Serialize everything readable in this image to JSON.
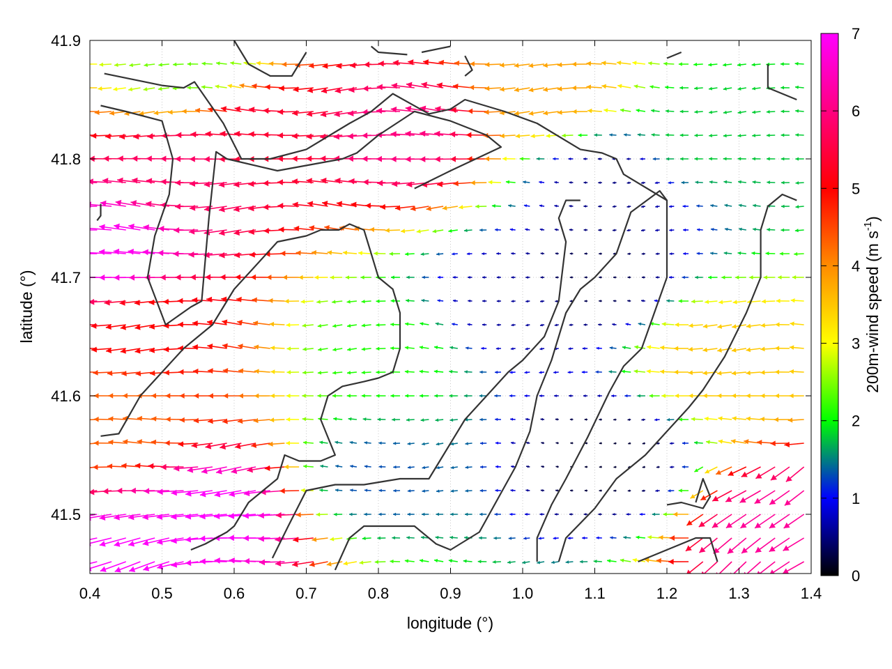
{
  "chart_data": {
    "type": "vector-field",
    "xlabel": "longitude (°)",
    "ylabel": "latitude (°)",
    "xlim": [
      0.4,
      1.4
    ],
    "ylim": [
      41.45,
      41.9
    ],
    "xticks": [
      "0.4",
      "0.5",
      "0.6",
      "0.7",
      "0.8",
      "0.9",
      "1.0",
      "1.1",
      "1.2",
      "1.3",
      "1.4"
    ],
    "yticks": [
      "41.5",
      "41.6",
      "41.7",
      "41.8",
      "41.9"
    ],
    "grid": true,
    "colorbar": {
      "label": "200m-wind speed (m s",
      "label_superscript": "-1",
      "label_close": ")",
      "range": [
        0,
        7
      ],
      "ticks": [
        "0",
        "1",
        "2",
        "3",
        "4",
        "5",
        "6",
        "7"
      ],
      "colormap": [
        "#000000",
        "#0000ff",
        "#00ff00",
        "#ffff00",
        "#ff8c00",
        "#ff0000",
        "#ff00ff"
      ]
    },
    "grid_step_deg": 0.02,
    "speed_field_samples": [
      {
        "lon": 0.45,
        "lat": 41.72,
        "speed": 6.9
      },
      {
        "lon": 0.55,
        "lat": 41.79,
        "speed": 5.8
      },
      {
        "lon": 0.65,
        "lat": 41.82,
        "speed": 5.4
      },
      {
        "lon": 0.85,
        "lat": 41.82,
        "speed": 6.0
      },
      {
        "lon": 0.5,
        "lat": 41.66,
        "speed": 5.0
      },
      {
        "lon": 0.6,
        "lat": 41.5,
        "speed": 7.0
      },
      {
        "lon": 0.45,
        "lat": 41.46,
        "speed": 7.0
      },
      {
        "lon": 0.45,
        "lat": 41.58,
        "speed": 4.3
      },
      {
        "lon": 0.82,
        "lat": 41.64,
        "speed": 2.1
      },
      {
        "lon": 0.98,
        "lat": 41.68,
        "speed": 0.6
      },
      {
        "lon": 1.1,
        "lat": 41.7,
        "speed": 0.3
      },
      {
        "lon": 1.12,
        "lat": 41.55,
        "speed": 0.2
      },
      {
        "lon": 1.12,
        "lat": 41.78,
        "speed": 0.5
      },
      {
        "lon": 1.28,
        "lat": 41.63,
        "speed": 3.5
      },
      {
        "lon": 1.37,
        "lat": 41.49,
        "speed": 6.2
      },
      {
        "lon": 1.05,
        "lat": 41.86,
        "speed": 3.8
      },
      {
        "lon": 0.55,
        "lat": 41.88,
        "speed": 2.4
      },
      {
        "lon": 0.8,
        "lat": 41.53,
        "speed": 1.3
      },
      {
        "lon": 1.25,
        "lat": 41.82,
        "speed": 1.8
      }
    ],
    "contour_lines": [
      [
        [
          0.42,
          41.872
        ],
        [
          0.5,
          41.862
        ],
        [
          0.53,
          41.86
        ],
        [
          0.545,
          41.865
        ],
        [
          0.585,
          41.83
        ],
        [
          0.61,
          41.8
        ],
        [
          0.65,
          41.8
        ],
        [
          0.7,
          41.808
        ],
        [
          0.76,
          41.83
        ],
        [
          0.79,
          41.84
        ],
        [
          0.82,
          41.855
        ],
        [
          0.87,
          41.838
        ],
        [
          0.9,
          41.842
        ],
        [
          0.92,
          41.85
        ],
        [
          0.975,
          41.84
        ],
        [
          1.02,
          41.83
        ],
        [
          1.08,
          41.808
        ],
        [
          1.11,
          41.805
        ],
        [
          1.13,
          41.8
        ],
        [
          1.14,
          41.787
        ],
        [
          1.2,
          41.765
        ],
        [
          1.2,
          41.7
        ],
        [
          1.165,
          41.64
        ],
        [
          1.14,
          41.625
        ],
        [
          1.12,
          41.603
        ],
        [
          1.09,
          41.565
        ],
        [
          1.06,
          41.53
        ],
        [
          1.04,
          41.508
        ],
        [
          1.02,
          41.48
        ],
        [
          1.02,
          41.46
        ]
      ],
      [
        [
          0.415,
          41.845
        ],
        [
          0.45,
          41.84
        ],
        [
          0.5,
          41.832
        ],
        [
          0.515,
          41.8
        ],
        [
          0.51,
          41.77
        ],
        [
          0.49,
          41.735
        ],
        [
          0.48,
          41.7
        ],
        [
          0.505,
          41.66
        ],
        [
          0.54,
          41.675
        ],
        [
          0.555,
          41.68
        ],
        [
          0.565,
          41.75
        ],
        [
          0.575,
          41.806
        ],
        [
          0.59,
          41.8
        ],
        [
          0.66,
          41.79
        ],
        [
          0.75,
          41.8
        ],
        [
          0.77,
          41.805
        ],
        [
          0.8,
          41.82
        ],
        [
          0.85,
          41.84
        ],
        [
          0.9,
          41.832
        ],
        [
          0.95,
          41.82
        ],
        [
          0.97,
          41.81
        ],
        [
          0.9,
          41.79
        ],
        [
          0.85,
          41.775
        ]
      ],
      [
        [
          0.415,
          41.762
        ],
        [
          0.415,
          41.752
        ],
        [
          0.41,
          41.748
        ]
      ],
      [
        [
          0.415,
          41.566
        ],
        [
          0.44,
          41.568
        ],
        [
          0.47,
          41.6
        ],
        [
          0.5,
          41.62
        ],
        [
          0.53,
          41.64
        ],
        [
          0.57,
          41.66
        ],
        [
          0.6,
          41.69
        ],
        [
          0.63,
          41.71
        ],
        [
          0.66,
          41.73
        ],
        [
          0.7,
          41.735
        ],
        [
          0.72,
          41.74
        ],
        [
          0.73,
          41.74
        ],
        [
          0.745,
          41.74
        ],
        [
          0.76,
          41.745
        ],
        [
          0.78,
          41.74
        ],
        [
          0.79,
          41.72
        ],
        [
          0.8,
          41.7
        ],
        [
          0.82,
          41.69
        ],
        [
          0.83,
          41.67
        ],
        [
          0.83,
          41.64
        ],
        [
          0.82,
          41.62
        ],
        [
          0.8,
          41.615
        ],
        [
          0.78,
          41.612
        ],
        [
          0.75,
          41.608
        ],
        [
          0.73,
          41.6
        ],
        [
          0.72,
          41.58
        ],
        [
          0.74,
          41.55
        ],
        [
          0.72,
          41.545
        ],
        [
          0.69,
          41.545
        ],
        [
          0.67,
          41.55
        ],
        [
          0.66,
          41.53
        ],
        [
          0.64,
          41.52
        ],
        [
          0.62,
          41.51
        ],
        [
          0.6,
          41.49
        ],
        [
          0.59,
          41.485
        ],
        [
          0.56,
          41.475
        ],
        [
          0.54,
          41.47
        ]
      ],
      [
        [
          0.653,
          41.463
        ],
        [
          0.675,
          41.49
        ],
        [
          0.7,
          41.52
        ],
        [
          0.74,
          41.525
        ],
        [
          0.78,
          41.525
        ],
        [
          0.83,
          41.53
        ],
        [
          0.87,
          41.53
        ],
        [
          0.89,
          41.55
        ],
        [
          0.92,
          41.58
        ],
        [
          0.95,
          41.6
        ],
        [
          0.98,
          41.62
        ],
        [
          1.0,
          41.63
        ],
        [
          1.03,
          41.65
        ],
        [
          1.05,
          41.68
        ],
        [
          1.06,
          41.73
        ],
        [
          1.05,
          41.75
        ],
        [
          1.06,
          41.765
        ],
        [
          1.08,
          41.765
        ]
      ],
      [
        [
          0.74,
          41.453
        ],
        [
          0.76,
          41.48
        ],
        [
          0.78,
          41.49
        ],
        [
          0.82,
          41.49
        ],
        [
          0.85,
          41.49
        ],
        [
          0.88,
          41.475
        ],
        [
          0.9,
          41.47
        ],
        [
          0.94,
          41.485
        ],
        [
          0.99,
          41.54
        ],
        [
          1.01,
          41.57
        ],
        [
          1.02,
          41.6
        ],
        [
          1.04,
          41.63
        ],
        [
          1.06,
          41.67
        ],
        [
          1.08,
          41.69
        ],
        [
          1.1,
          41.7
        ],
        [
          1.13,
          41.72
        ],
        [
          1.15,
          41.755
        ],
        [
          1.19,
          41.773
        ],
        [
          1.2,
          41.765
        ]
      ],
      [
        [
          1.05,
          41.46
        ],
        [
          1.06,
          41.48
        ],
        [
          1.1,
          41.505
        ],
        [
          1.13,
          41.53
        ],
        [
          1.17,
          41.55
        ],
        [
          1.2,
          41.57
        ],
        [
          1.23,
          41.59
        ],
        [
          1.25,
          41.605
        ],
        [
          1.28,
          41.633
        ],
        [
          1.31,
          41.67
        ],
        [
          1.33,
          41.7
        ],
        [
          1.33,
          41.74
        ],
        [
          1.34,
          41.76
        ],
        [
          1.36,
          41.77
        ],
        [
          1.38,
          41.765
        ]
      ],
      [
        [
          1.16,
          41.46
        ],
        [
          1.2,
          41.47
        ],
        [
          1.24,
          41.48
        ],
        [
          1.26,
          41.48
        ],
        [
          1.27,
          41.46
        ]
      ],
      [
        [
          1.2,
          41.508
        ],
        [
          1.22,
          41.51
        ],
        [
          1.25,
          41.505
        ],
        [
          1.26,
          41.515
        ],
        [
          1.25,
          41.53
        ],
        [
          1.24,
          41.51
        ]
      ],
      [
        [
          0.79,
          41.895
        ],
        [
          0.8,
          41.89
        ],
        [
          0.84,
          41.888
        ]
      ],
      [
        [
          0.86,
          41.89
        ],
        [
          0.9,
          41.895
        ]
      ],
      [
        [
          0.92,
          41.887
        ],
        [
          0.93,
          41.875
        ],
        [
          0.92,
          41.87
        ]
      ],
      [
        [
          0.6,
          41.9
        ],
        [
          0.62,
          41.88
        ],
        [
          0.65,
          41.87
        ],
        [
          0.68,
          41.87
        ],
        [
          0.7,
          41.89
        ]
      ],
      [
        [
          1.2,
          41.885
        ],
        [
          1.22,
          41.89
        ]
      ],
      [
        [
          1.34,
          41.88
        ],
        [
          1.34,
          41.86
        ],
        [
          1.38,
          41.85
        ]
      ]
    ]
  }
}
